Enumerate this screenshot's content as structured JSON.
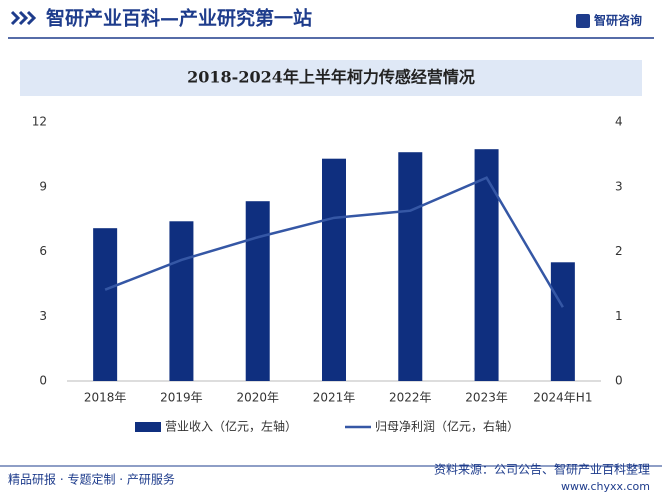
{
  "header": {
    "title": "智研产业百科—产业研究第一站",
    "logo": "智研咨询"
  },
  "chart_data": {
    "type": "bar",
    "title": "2018-2024年上半年柯力传感经营情况",
    "categories": [
      "2018年",
      "2019年",
      "2020年",
      "2021年",
      "2022年",
      "2023年",
      "2024年H1"
    ],
    "series": [
      {
        "name": "营业收入（亿元，左轴）",
        "type": "bar",
        "color": "#0f2f7f",
        "values": [
          7.08,
          7.4,
          8.33,
          10.3,
          10.6,
          10.74,
          5.5
        ]
      },
      {
        "name": "归母净利润（亿元，右轴）",
        "type": "line",
        "axis": "y2",
        "color": "#3557a5",
        "values": [
          1.41,
          1.87,
          2.22,
          2.52,
          2.63,
          3.14,
          1.14
        ]
      }
    ],
    "ylim": [
      0,
      12
    ],
    "yticks": [
      0,
      3,
      6,
      9,
      12
    ],
    "y2lim": [
      0,
      4
    ],
    "y2ticks": [
      0,
      1,
      2,
      3,
      4
    ],
    "grid": false,
    "legend": "bottom"
  },
  "footer": {
    "left": "精品研报 · 专题定制 · 产研服务",
    "source": "资料来源：公司公告、智研产业百科整理",
    "url": "www.chyxx.com"
  }
}
